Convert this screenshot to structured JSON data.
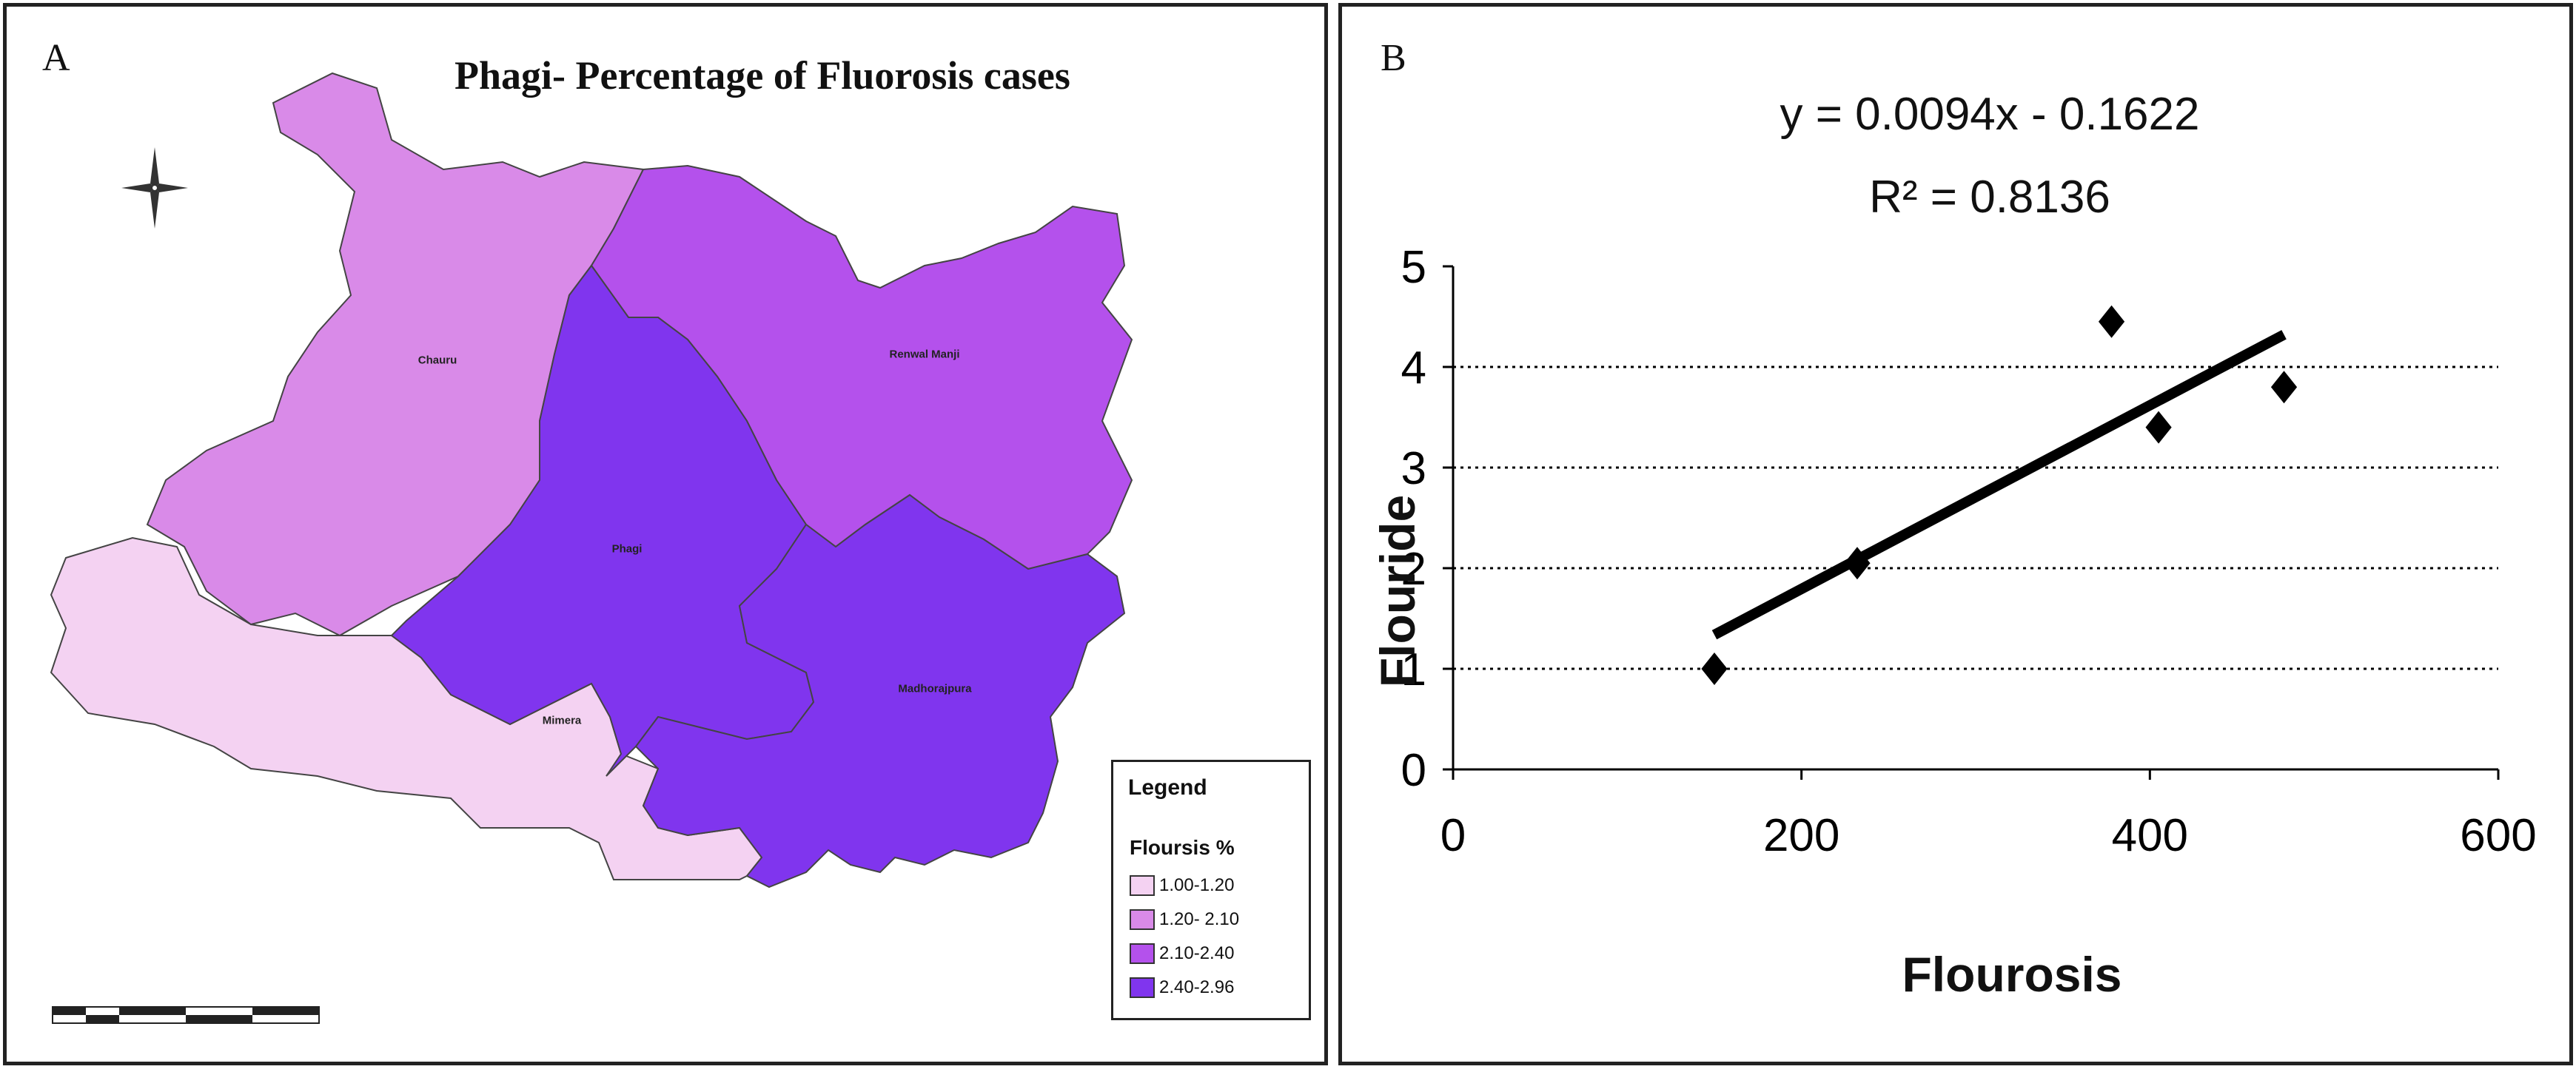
{
  "panel_a": {
    "letter": "A",
    "title": "Phagi- Percentage of Fluorosis cases",
    "regions": [
      {
        "name": "Chauru",
        "fill": "#d98ae8"
      },
      {
        "name": "Renwal Manji",
        "fill": "#b451ec"
      },
      {
        "name": "Phagi",
        "fill": "#8035ee"
      },
      {
        "name": "Madhorajpura",
        "fill": "#8035ee"
      },
      {
        "name": "Mimera",
        "fill": "#f4d2f2"
      }
    ],
    "legend": {
      "title": "Legend",
      "subtitle": "Floursis %",
      "items": [
        {
          "label": "1.00-1.20",
          "color": "#f4d2f2"
        },
        {
          "label": "1.20- 2.10",
          "color": "#d98ae8"
        },
        {
          "label": "2.10-2.40",
          "color": "#b451ec"
        },
        {
          "label": "2.40-2.96",
          "color": "#8035ee"
        }
      ]
    },
    "icons": {
      "north_arrow": "compass-icon",
      "scale_bar": "scale-bar"
    }
  },
  "panel_b": {
    "letter": "B",
    "equation": "y = 0.0094x - 0.1622",
    "r_squared": "R² = 0.8136"
  },
  "chart_data": {
    "type": "scatter",
    "xlabel": "Flourosis",
    "ylabel": "Flouride",
    "xlim": [
      0,
      600
    ],
    "ylim": [
      0,
      5
    ],
    "x_ticks": [
      0,
      200,
      400,
      600
    ],
    "y_ticks": [
      0,
      1,
      2,
      3,
      4,
      5
    ],
    "grid": "horizontal-dotted",
    "points": [
      {
        "x": 150,
        "y": 1.0
      },
      {
        "x": 232,
        "y": 2.05
      },
      {
        "x": 378,
        "y": 4.45
      },
      {
        "x": 405,
        "y": 3.4
      },
      {
        "x": 477,
        "y": 3.8
      }
    ],
    "trendline": {
      "slope": 0.0094,
      "intercept": -0.1622,
      "x_range": [
        150,
        477
      ]
    },
    "marker": "diamond",
    "color": "#000000"
  }
}
